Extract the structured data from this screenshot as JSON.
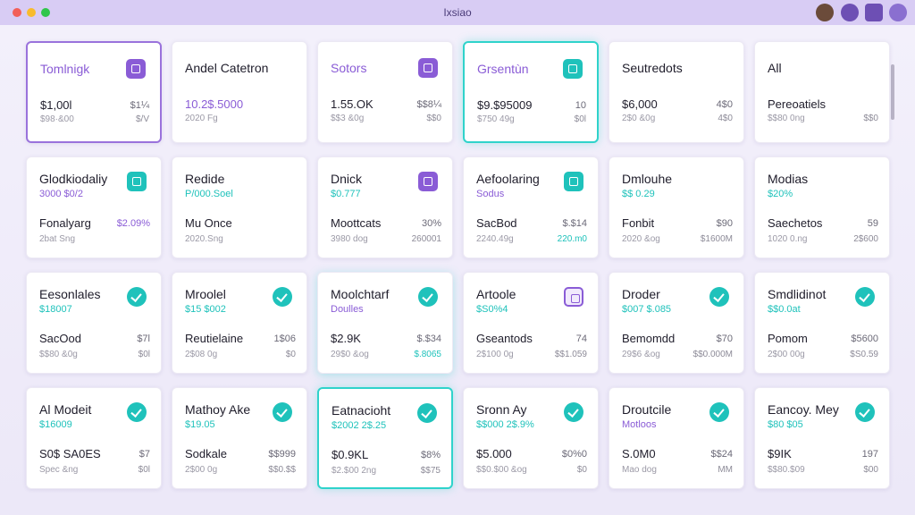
{
  "window": {
    "title": "Ixsiao"
  },
  "cards": [
    {
      "title": "Tomlnigk",
      "value": "$1,00l",
      "value_right": "$1¼",
      "note": "$98·&00",
      "note_right": "$/V"
    },
    {
      "title": "Andel Catetron",
      "value": "10.2$.5000",
      "note": "2020 Fg"
    },
    {
      "title": "Sotors",
      "value": "1.55.OK",
      "value_right": "$$8¼",
      "note": "$$3 &0g",
      "note_right": "$$0"
    },
    {
      "title": "Grsentùn",
      "value": "$9.$95009",
      "value_right": "10",
      "note": "$750 49g",
      "note_right": "$0l"
    },
    {
      "title": "Seutredots",
      "value": "$6,000",
      "value_right": "4$0",
      "note": "2$0 &0g",
      "note_right": "4$0"
    },
    {
      "title": "All",
      "value": "Pereoatiels",
      "note": "$$80 0ng",
      "note_right": "$$0"
    },
    {
      "title": "Glodkiodaliy",
      "subtitle": "3000 $0/2",
      "value": "Fonalyarg",
      "value_right": "$2.09%",
      "note": "2bat Sng"
    },
    {
      "title": "Redide",
      "subtitle": "P/000.Soel",
      "value": "Mu Once",
      "note": "2020.Sng"
    },
    {
      "title": "Dnick",
      "subtitle": "$0.777",
      "value": "Moottcats",
      "value_right": "30%",
      "note": "3980 dog",
      "note_right": "260001"
    },
    {
      "title": "Aefoolaring",
      "subtitle": "Sodus",
      "value": "SacBod",
      "value_right": "$.$14",
      "note": "2240.49g",
      "note_right": "220.m0"
    },
    {
      "title": "Dmlouhe",
      "subtitle": "$$ 0.29",
      "value": "Fonbit",
      "value_right": "$90",
      "note": "2020 &og",
      "note_right": "$1600M"
    },
    {
      "title": "Modias",
      "subtitle": "$20%",
      "value": "Saechetos",
      "value_right": "59",
      "note": "1020 0.ng",
      "note_right": "2$600"
    },
    {
      "title": "Eesonlales",
      "subtitle": "$18007",
      "value": "SacOod",
      "value_right": "$7l",
      "note": "$$80 &0g",
      "note_right": "$0l"
    },
    {
      "title": "Mroolel",
      "subtitle": "$15 $002",
      "value": "Reutielaine",
      "value_right": "1$06",
      "note": "2$08 0g",
      "note_right": "$0"
    },
    {
      "title": "Moolchtarf",
      "subtitle": "Doulles",
      "value": "$2.9K",
      "value_right": "$.$34",
      "note": "29$0 &og",
      "note_right": "$.8065"
    },
    {
      "title": "Artoole",
      "subtitle": "$S0%4",
      "value": "Gseantods",
      "value_right": "74",
      "note": "2$100 0g",
      "note_right": "$$1.059"
    },
    {
      "title": "Droder",
      "subtitle": "$007 $.085",
      "value": "Bemomdd",
      "value_right": "$70",
      "note": "29$6 &og",
      "note_right": "$$0.000M"
    },
    {
      "title": "Smdlidinot",
      "subtitle": "$$0.0at",
      "value": "Pomom",
      "value_right": "$5600",
      "note": "2$00 00g",
      "note_right": "$S0.59"
    },
    {
      "title": "Al Modeit",
      "subtitle": "$16009",
      "value": "S0$ SA0ES",
      "value_right": "$7",
      "note": "Spec &ng",
      "note_right": "$0l"
    },
    {
      "title": "Mathoy Ake",
      "subtitle": "$19.05",
      "value": "Sodkale",
      "value_right": "$$999",
      "note": "2$00 0g",
      "note_right": "$$0.$$"
    },
    {
      "title": "Eatnacioht",
      "subtitle": "$2002 2$.25",
      "value": "$0.9KL",
      "value_right": "$8%",
      "note": "$2.$00 2ng",
      "note_right": "$$75"
    },
    {
      "title": "Sronn Ay",
      "subtitle": "$$000 2$.9%",
      "value": "$5.000",
      "value_right": "$0%0",
      "note": "$$0.$00 &og",
      "note_right": "$0"
    },
    {
      "title": "Droutcile",
      "subtitle": "Motloos",
      "value": "S.0M0",
      "value_right": "$$24",
      "note": "Mao dog",
      "note_right": "MM"
    },
    {
      "title": "Eancoy. Mey",
      "subtitle": "$80 $05",
      "value": "$9IK",
      "value_right": "197",
      "note": "$$80.$09",
      "note_right": "$00"
    }
  ]
}
